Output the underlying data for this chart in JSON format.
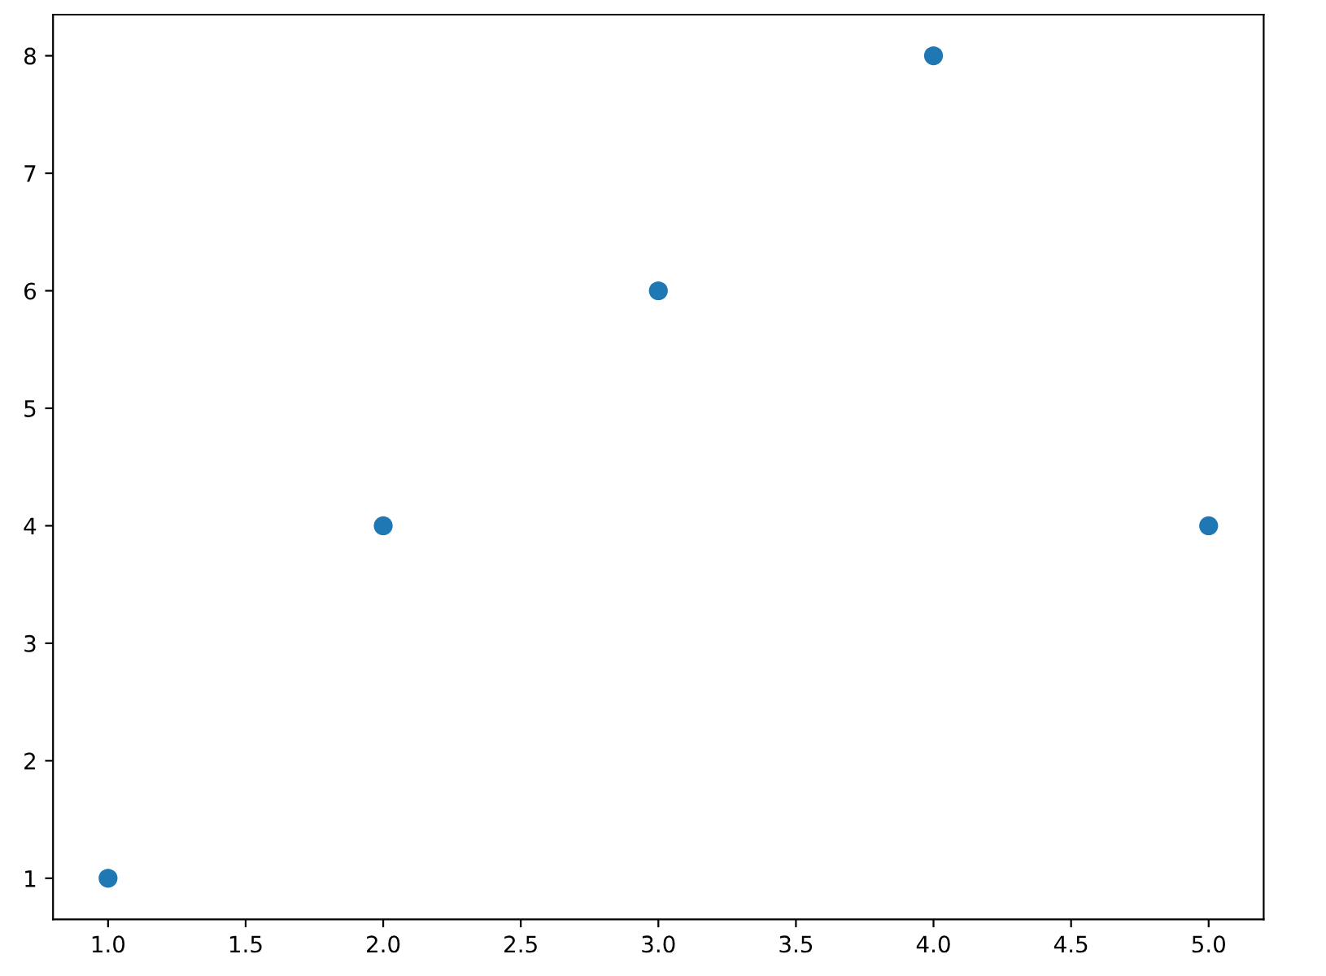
{
  "chart_data": {
    "type": "scatter",
    "x": [
      1,
      2,
      3,
      4,
      5
    ],
    "values": [
      1,
      4,
      6,
      8,
      4
    ],
    "color": "#1f77b4",
    "marker": "circle",
    "xlim": [
      0.8,
      5.2
    ],
    "ylim": [
      0.65,
      8.35
    ],
    "xticks": [
      {
        "value": 1,
        "label": "1.0"
      },
      {
        "value": 1.5,
        "label": "1.5"
      },
      {
        "value": 2,
        "label": "2.0"
      },
      {
        "value": 2.5,
        "label": "2.5"
      },
      {
        "value": 3,
        "label": "3.0"
      },
      {
        "value": 3.5,
        "label": "3.5"
      },
      {
        "value": 4,
        "label": "4.0"
      },
      {
        "value": 4.5,
        "label": "4.5"
      },
      {
        "value": 5,
        "label": "5.0"
      }
    ],
    "yticks": [
      1,
      2,
      3,
      4,
      5,
      6,
      7,
      8
    ],
    "grid": false
  }
}
